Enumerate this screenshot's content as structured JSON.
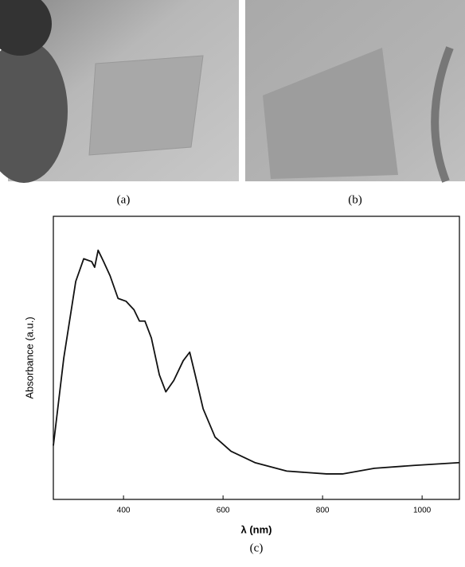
{
  "panels": [
    {
      "label": "(a)"
    },
    {
      "label": "(b)"
    }
  ],
  "chart_data": {
    "type": "line",
    "caption": "(c)",
    "xlabel": "λ (nm)",
    "ylabel": "Absorbance (a.u.)",
    "x": [
      259,
      280,
      304,
      320,
      336,
      342,
      349,
      360,
      373,
      389,
      405,
      421,
      432,
      443,
      456,
      472,
      485,
      501,
      520,
      533,
      544,
      560,
      584,
      616,
      664,
      728,
      808,
      840,
      904,
      984,
      1075
    ],
    "series": [
      {
        "color": "#111111",
        "values": [
          0.19,
          0.5,
          0.77,
          0.85,
          0.84,
          0.82,
          0.88,
          0.84,
          0.79,
          0.71,
          0.7,
          0.67,
          0.63,
          0.63,
          0.57,
          0.44,
          0.38,
          0.42,
          0.49,
          0.52,
          0.44,
          0.32,
          0.22,
          0.17,
          0.13,
          0.1,
          0.09,
          0.09,
          0.11,
          0.12,
          0.13
        ]
      }
    ],
    "xlim": [
      259,
      1075
    ],
    "ylim": [
      0,
      1
    ],
    "xticks": [
      400,
      600,
      800,
      1000
    ]
  }
}
